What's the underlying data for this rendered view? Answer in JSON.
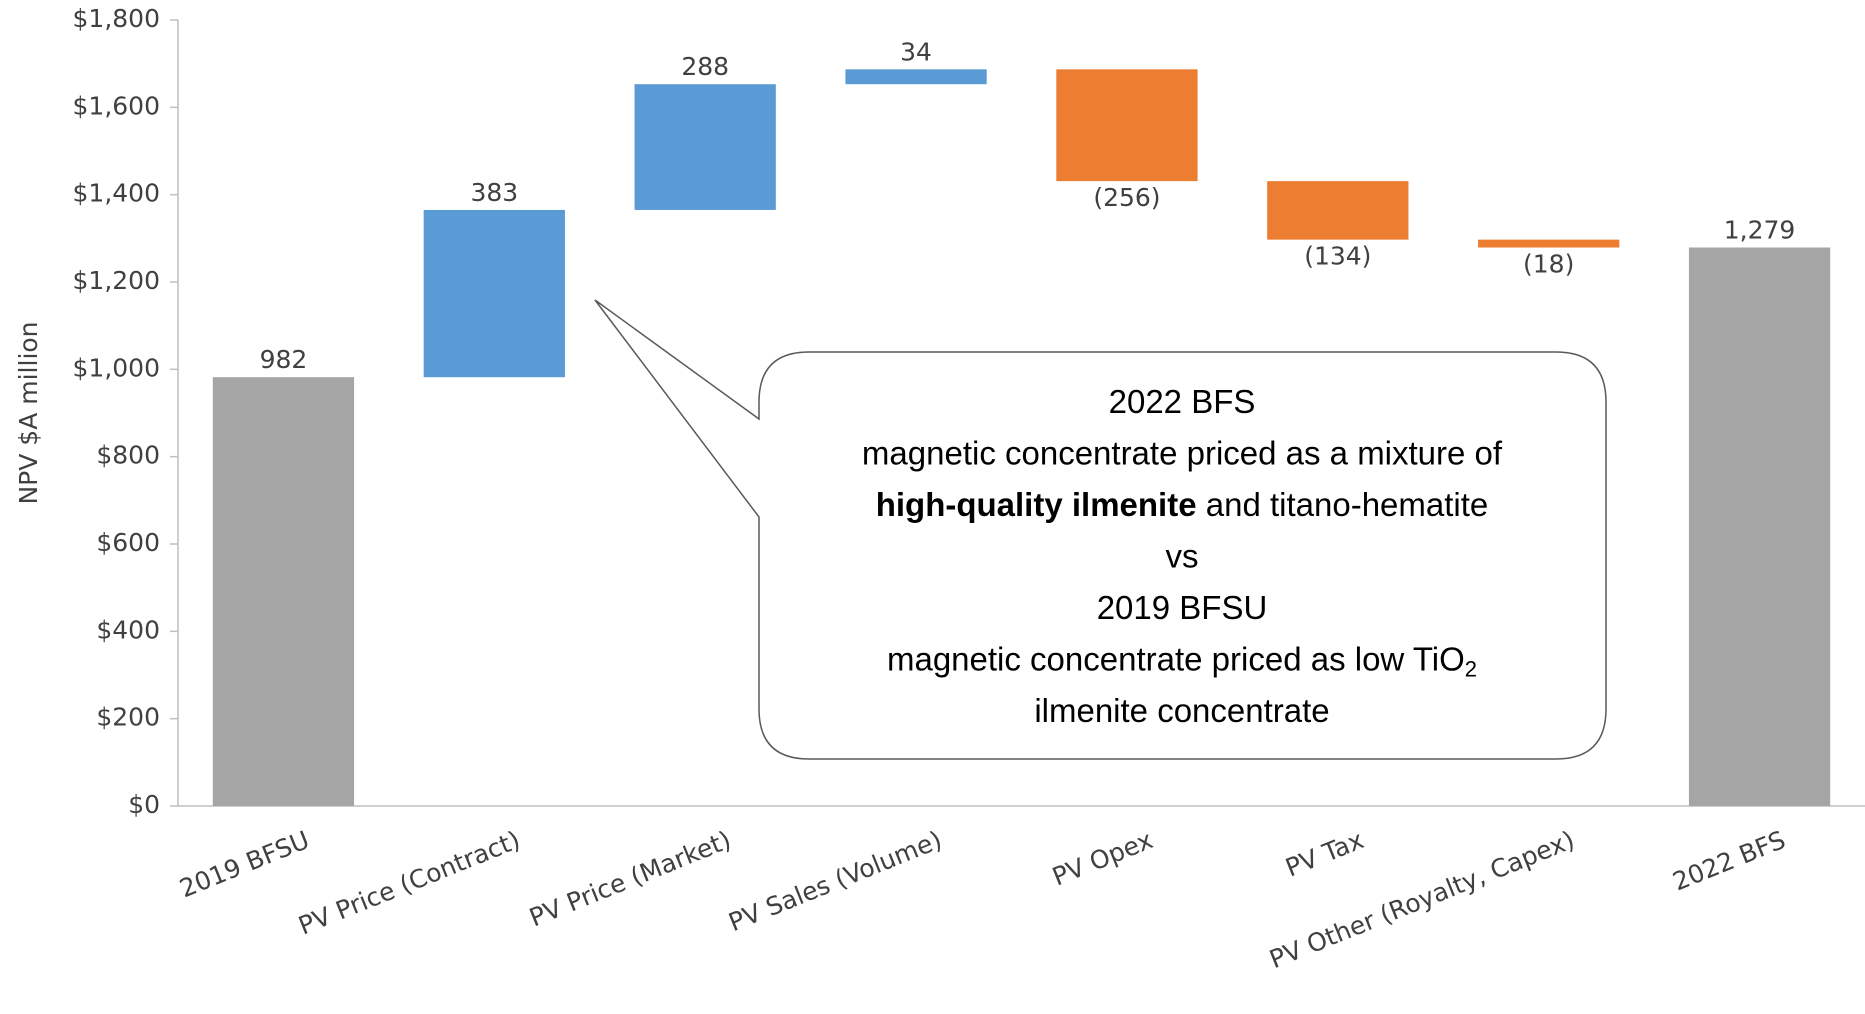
{
  "chart_data": {
    "type": "waterfall",
    "ylabel": "NPV $A million",
    "categories": [
      "2019 BFSU",
      "PV Price (Contract)",
      "PV Price (Market)",
      "PV Sales (Volume)",
      "PV Opex",
      "PV Tax",
      "PV Other (Royalty, Capex)",
      "2022 BFS"
    ],
    "values": [
      982,
      383,
      288,
      34,
      -256,
      -134,
      -18,
      1279
    ],
    "value_labels": [
      "982",
      "383",
      "288",
      "34",
      "(256)",
      "(134)",
      "(18)",
      "1,279"
    ],
    "is_total": [
      true,
      false,
      false,
      false,
      false,
      false,
      false,
      true
    ],
    "colors": [
      "#a5a5a5",
      "#5b9bd5",
      "#5b9bd5",
      "#5b9bd5",
      "#ed7d31",
      "#ed7d31",
      "#ed7d31",
      "#a5a5a5"
    ],
    "ylim": [
      0,
      1800
    ],
    "yticks": [
      {
        "value": 0,
        "label": "$0"
      },
      {
        "value": 200,
        "label": "$200"
      },
      {
        "value": 400,
        "label": "$400"
      },
      {
        "value": 600,
        "label": "$600"
      },
      {
        "value": 800,
        "label": "$800"
      },
      {
        "value": 1000,
        "label": "$1,000"
      },
      {
        "value": 1200,
        "label": "$1,200"
      },
      {
        "value": 1400,
        "label": "$1,400"
      },
      {
        "value": 1600,
        "label": "$1,600"
      },
      {
        "value": 1800,
        "label": "$1,800"
      }
    ],
    "grid": false,
    "annotation": {
      "lines": [
        [
          {
            "text": "2022 BFS"
          }
        ],
        [
          {
            "text": "magnetic concentrate priced as a mixture of"
          }
        ],
        [
          {
            "text": "high-quality ilmenite",
            "bold": true
          },
          {
            "text": " and titano-hematite"
          }
        ],
        [
          {
            "text": "vs"
          }
        ],
        [
          {
            "text": "2019 BFSU"
          }
        ],
        [
          {
            "text": "magnetic concentrate priced as low TiO"
          },
          {
            "text": "2",
            "sub": true
          }
        ],
        [
          {
            "text": "ilmenite concentrate"
          }
        ]
      ]
    }
  }
}
